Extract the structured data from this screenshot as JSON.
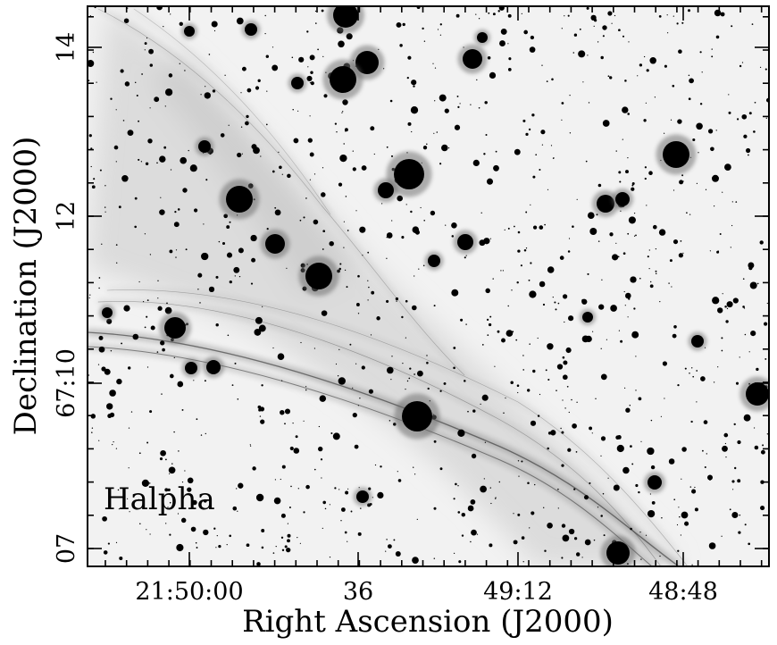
{
  "figure": {
    "panel_label": "Halpha",
    "x_axis": {
      "title": "Right Ascension (J2000)",
      "tick_labels": [
        "21:50:00",
        "36",
        "49:12",
        "48:48"
      ]
    },
    "y_axis": {
      "title": "Declination (J2000)",
      "tick_labels": [
        "07",
        "67:10",
        "12",
        "14"
      ]
    }
  }
}
